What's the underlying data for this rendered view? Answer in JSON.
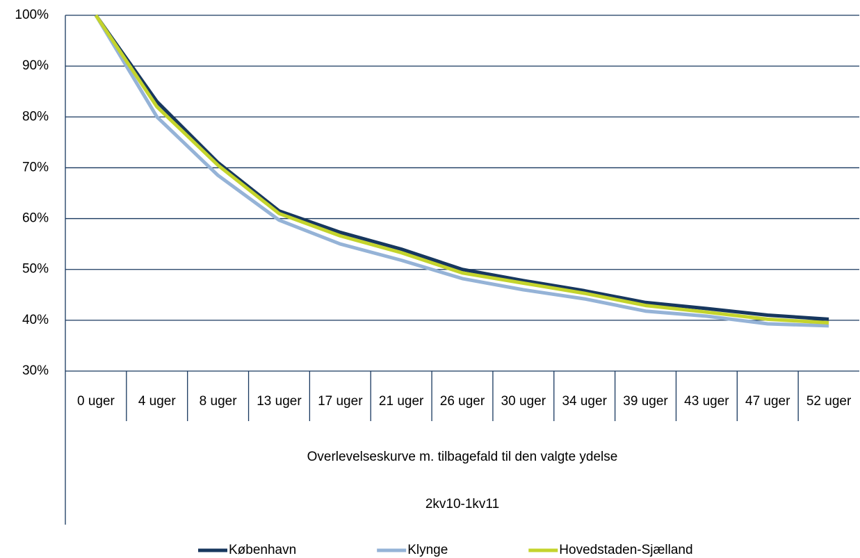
{
  "chart_data": {
    "type": "line",
    "categories": [
      "0 uger",
      "4 uger",
      "8 uger",
      "13 uger",
      "17 uger",
      "21 uger",
      "26 uger",
      "30 uger",
      "34 uger",
      "39 uger",
      "43 uger",
      "47 uger",
      "52 uger"
    ],
    "x_label_levels": [
      "Overlevelseskurve m. tilbagefald til den valgte ydelse",
      "2kv10-1kv11"
    ],
    "series": [
      {
        "name": "København",
        "color": "#17375e",
        "values": [
          100,
          83,
          71,
          61.5,
          57.3,
          54,
          50,
          47.8,
          45.8,
          43.5,
          42.3,
          41,
          40.2
        ]
      },
      {
        "name": "Klynge",
        "color": "#95b3d7",
        "values": [
          100,
          80,
          68.5,
          59.7,
          55,
          51.8,
          48.2,
          46,
          44.2,
          41.8,
          40.8,
          39.3,
          38.9
        ]
      },
      {
        "name": "Hovedstaden-Sjælland",
        "color": "#c4d42c",
        "values": [
          100,
          82,
          70.5,
          61,
          56.6,
          53.3,
          49.3,
          47.3,
          45.3,
          42.9,
          41.6,
          40.2,
          39.5
        ]
      }
    ],
    "ylim": [
      30,
      100
    ],
    "yticks": [
      {
        "value": 30,
        "label": "30%"
      },
      {
        "value": 40,
        "label": "40%"
      },
      {
        "value": 50,
        "label": "50%"
      },
      {
        "value": 60,
        "label": "60%"
      },
      {
        "value": 70,
        "label": "70%"
      },
      {
        "value": 80,
        "label": "80%"
      },
      {
        "value": 90,
        "label": "90%"
      },
      {
        "value": 100,
        "label": "100%"
      }
    ],
    "grid": true,
    "legend": "bottom"
  }
}
